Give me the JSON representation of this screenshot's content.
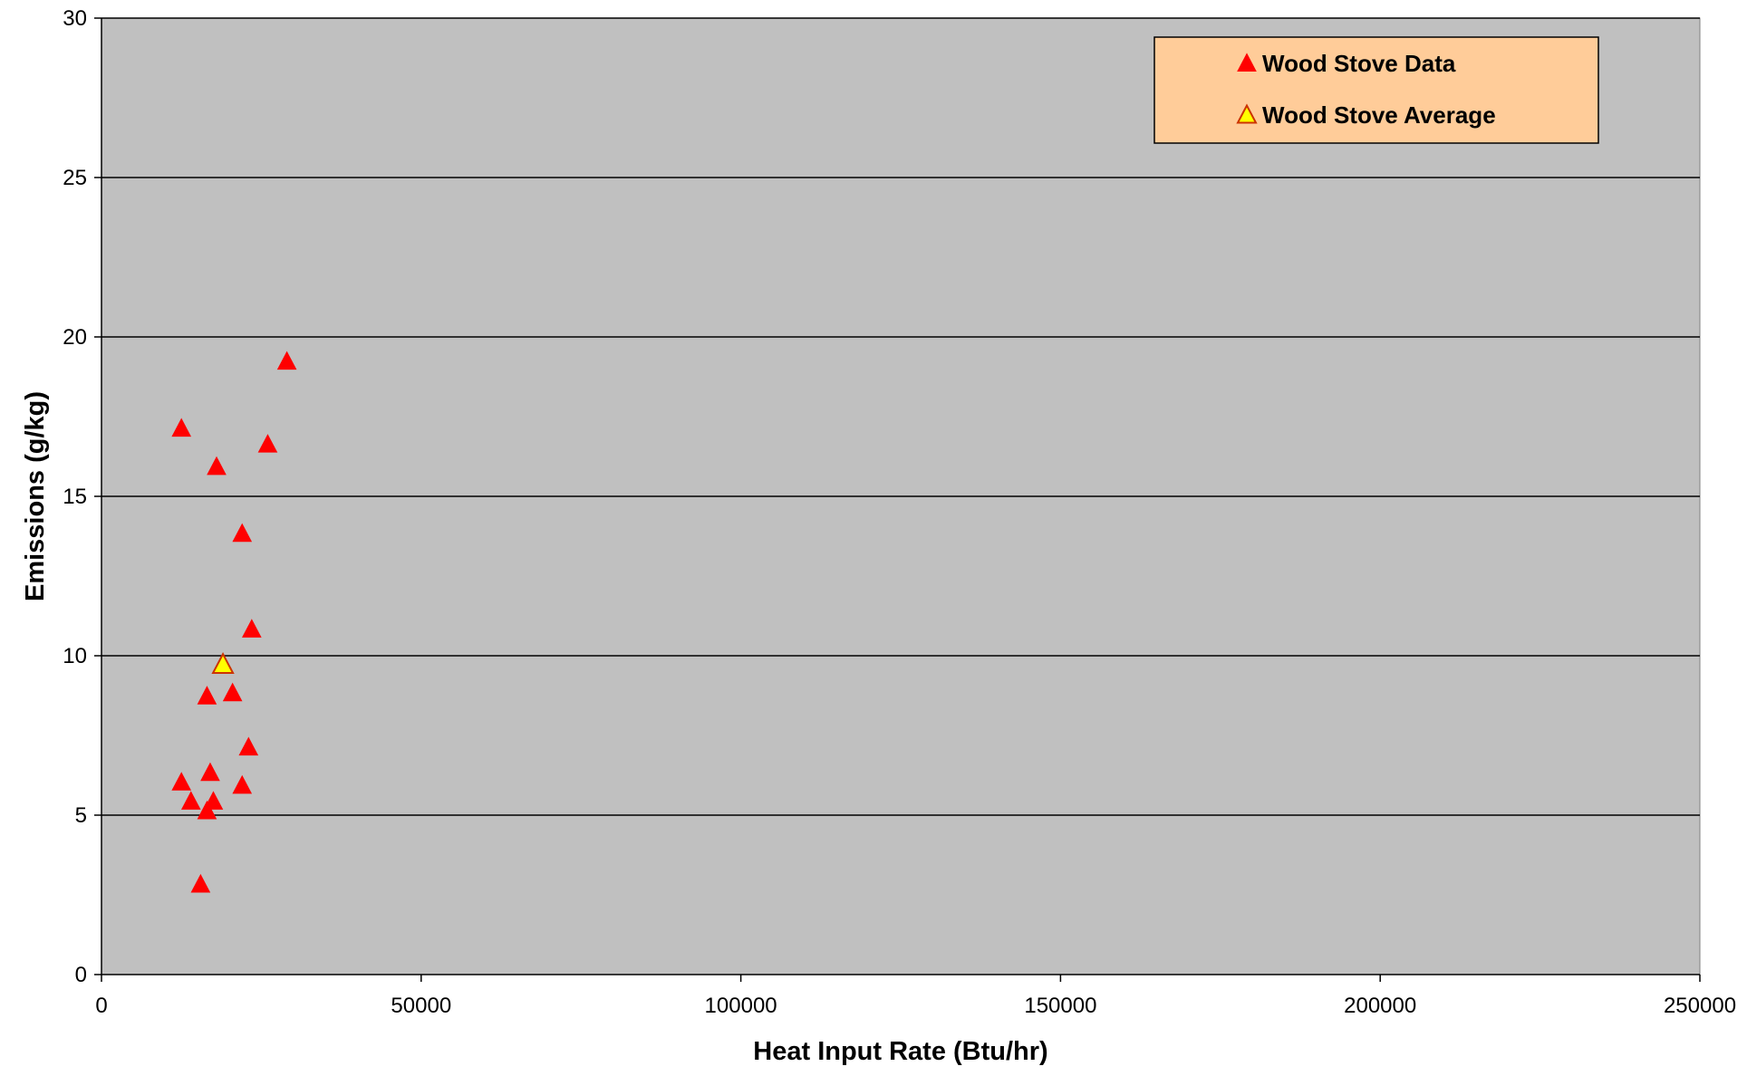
{
  "chart_data": {
    "type": "scatter",
    "title": "",
    "xlabel": "Heat Input Rate (Btu/hr)",
    "ylabel": "Emissions (g/kg)",
    "xlim": [
      0,
      250000
    ],
    "ylim": [
      0,
      30
    ],
    "x_ticks": [
      0,
      50000,
      100000,
      150000,
      200000,
      250000
    ],
    "y_ticks": [
      0,
      5,
      10,
      15,
      20,
      25,
      30
    ],
    "grid": "horizontal",
    "legend_position": "top-right",
    "colors": {
      "plot_background": "#c0c0c0",
      "legend_background": "#ffcc99",
      "data_marker": "#ff0000",
      "average_marker": "#ffff00",
      "average_outline": "#cc3300"
    },
    "series": [
      {
        "name": "Wood Stove Data",
        "marker": "triangle",
        "points": [
          [
            29000,
            19.2
          ],
          [
            12500,
            17.1
          ],
          [
            26000,
            16.6
          ],
          [
            18000,
            15.9
          ],
          [
            22000,
            13.8
          ],
          [
            23500,
            10.8
          ],
          [
            20500,
            8.8
          ],
          [
            16500,
            8.7
          ],
          [
            23000,
            7.1
          ],
          [
            17000,
            6.3
          ],
          [
            12500,
            6.0
          ],
          [
            22000,
            5.9
          ],
          [
            14000,
            5.4
          ],
          [
            17500,
            5.4
          ],
          [
            16500,
            5.1
          ],
          [
            15500,
            2.8
          ]
        ]
      },
      {
        "name": "Wood Stove Average",
        "marker": "triangle",
        "points": [
          [
            19000,
            9.7
          ]
        ]
      }
    ]
  }
}
